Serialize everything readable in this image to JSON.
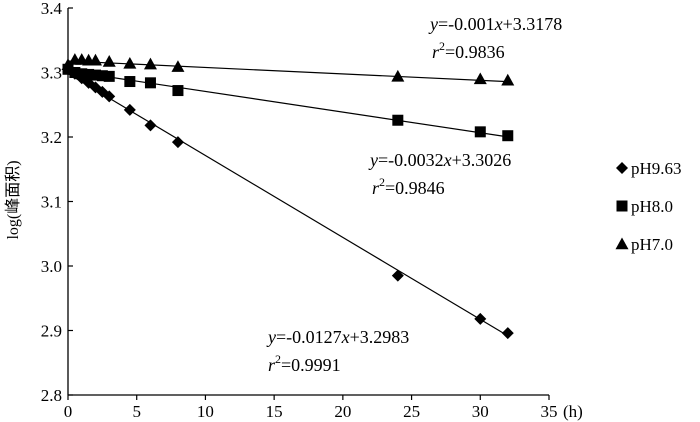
{
  "chart_data": {
    "type": "scatter",
    "xlabel": "(h)",
    "ylabel": "log(峰面积)",
    "xlim": [
      0,
      35
    ],
    "ylim": [
      2.8,
      3.4
    ],
    "x_ticks": [
      0,
      5,
      10,
      15,
      20,
      25,
      30,
      35
    ],
    "y_ticks": [
      2.8,
      2.9,
      3.0,
      3.1,
      3.2,
      3.3,
      3.4
    ],
    "x_tick_labels": [
      "0",
      "5",
      "10",
      "15",
      "20",
      "25",
      "30",
      "35"
    ],
    "y_tick_labels": [
      "2.8",
      "2.9",
      "3.0",
      "3.1",
      "3.2",
      "3.3",
      "3.4"
    ],
    "grid": false,
    "legend_position": "right",
    "series": [
      {
        "name": "pH9.63",
        "marker": "diamond",
        "x": [
          0,
          0.5,
          1,
          1.5,
          2,
          2.5,
          3,
          4.5,
          6,
          8,
          24,
          30,
          32
        ],
        "y": [
          3.305,
          3.298,
          3.291,
          3.284,
          3.277,
          3.27,
          3.263,
          3.242,
          3.218,
          3.192,
          2.985,
          2.918,
          2.896
        ],
        "fit": {
          "slope": -0.0127,
          "intercept": 3.2983
        },
        "equation": {
          "y_prefix": "y",
          "rhs": "=-0.0127",
          "x_var": "x",
          "tail": "+3.2983",
          "r_var": "r",
          "r_exp": "2",
          "r_value": "=0.9991"
        }
      },
      {
        "name": "pH8.0",
        "marker": "square",
        "x": [
          0,
          0.5,
          1,
          1.5,
          2,
          2.5,
          3,
          4.5,
          6,
          8,
          24,
          30,
          32
        ],
        "y": [
          3.305,
          3.3,
          3.298,
          3.297,
          3.296,
          3.295,
          3.294,
          3.286,
          3.284,
          3.272,
          3.226,
          3.208,
          3.202
        ],
        "fit": {
          "slope": -0.0032,
          "intercept": 3.3026
        },
        "equation": {
          "y_prefix": "y",
          "rhs": "=-0.0032",
          "x_var": "x",
          "tail": "+3.3026",
          "r_var": "r",
          "r_exp": "2",
          "r_value": "=0.9846"
        }
      },
      {
        "name": "pH7.0",
        "marker": "triangle",
        "x": [
          0,
          0.5,
          1,
          1.5,
          2,
          3,
          4.5,
          6,
          8,
          24,
          30,
          32
        ],
        "y": [
          3.312,
          3.32,
          3.32,
          3.319,
          3.319,
          3.317,
          3.314,
          3.313,
          3.309,
          3.294,
          3.29,
          3.288
        ],
        "fit": {
          "slope": -0.001,
          "intercept": 3.3178
        },
        "equation": {
          "y_prefix": "y",
          "rhs": "=-0.001",
          "x_var": "x",
          "tail": "+3.3178",
          "r_var": "r",
          "r_exp": "2",
          "r_value": "=0.9836"
        }
      }
    ]
  }
}
